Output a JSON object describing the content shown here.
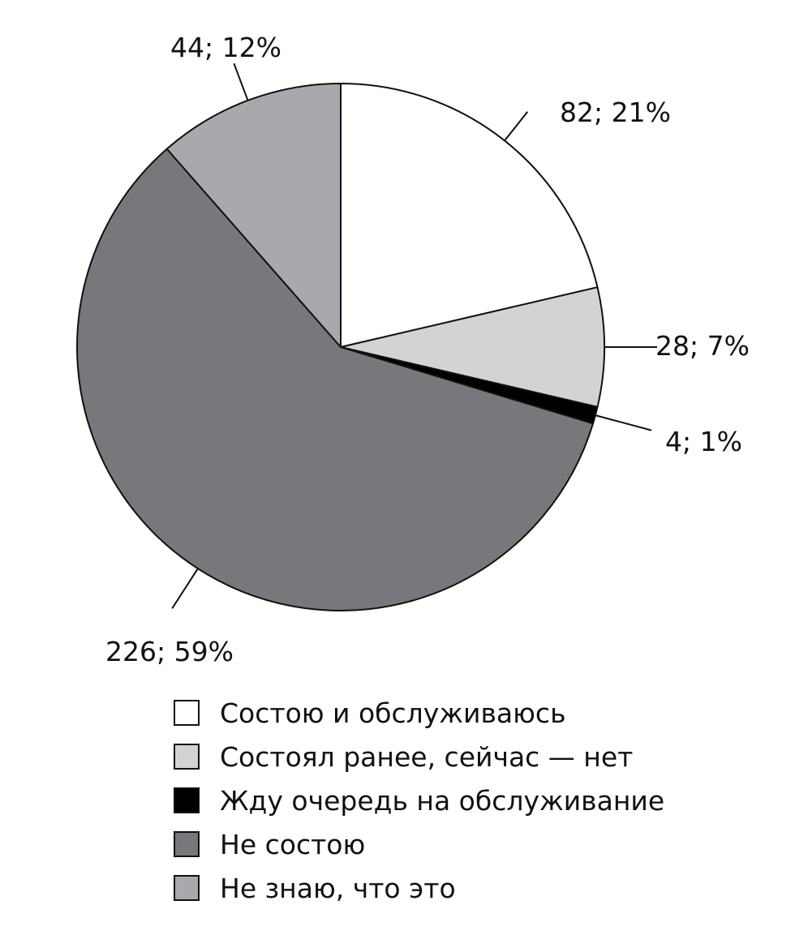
{
  "chart_data": {
    "type": "pie",
    "slices": [
      {
        "name": "Состою и обслуживаюсь",
        "value": 82,
        "percent": 21,
        "label": "82; 21%",
        "color": "#ffffff"
      },
      {
        "name": "Состоял ранее, сейчас — нет",
        "value": 28,
        "percent": 7,
        "label": "28; 7%",
        "color": "#d2d3d5"
      },
      {
        "name": "Жду очередь на обслуживание",
        "value": 4,
        "percent": 1,
        "label": "4; 1%",
        "color": "#000000"
      },
      {
        "name": "Не состою",
        "value": 226,
        "percent": 59,
        "label": "226; 59%",
        "color": "#77787b"
      },
      {
        "name": "Не знаю, что это",
        "value": 44,
        "percent": 12,
        "label": "44; 12%",
        "color": "#a7a9ac"
      }
    ],
    "legend_placement": "bottom",
    "title": ""
  }
}
